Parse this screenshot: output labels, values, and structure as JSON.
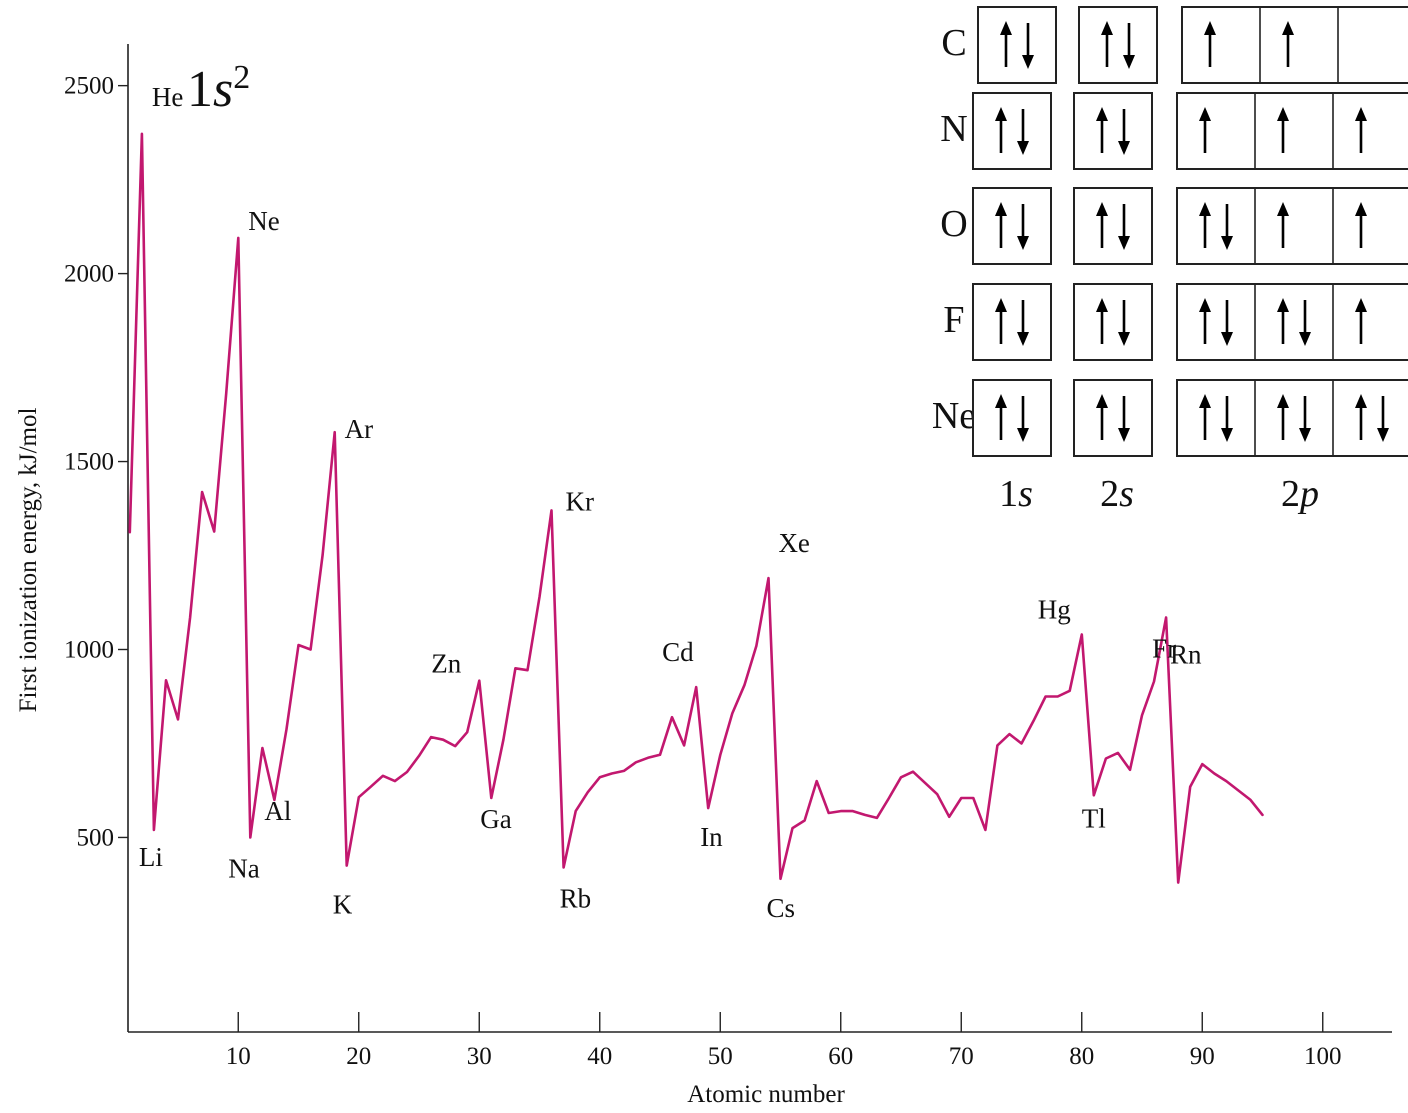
{
  "chart_data": {
    "type": "line",
    "xlabel": "Atomic number",
    "ylabel": "First ionization energy, kJ/mol",
    "xlim": [
      0,
      105
    ],
    "ylim": [
      0,
      2650
    ],
    "xticks": [
      10,
      20,
      30,
      40,
      50,
      60,
      70,
      80,
      90,
      100
    ],
    "yticks": [
      500,
      1000,
      1500,
      2000,
      2500
    ],
    "grid": false,
    "series_color": "#c2186f",
    "x": [
      1,
      2,
      3,
      4,
      5,
      6,
      7,
      8,
      9,
      10,
      11,
      12,
      13,
      14,
      15,
      16,
      17,
      18,
      19,
      20,
      21,
      22,
      23,
      24,
      25,
      26,
      27,
      28,
      29,
      30,
      31,
      32,
      33,
      34,
      35,
      36,
      37,
      38,
      39,
      40,
      41,
      42,
      43,
      44,
      45,
      46,
      47,
      48,
      49,
      50,
      51,
      52,
      53,
      54,
      55,
      56,
      57,
      58,
      59,
      60,
      61,
      62,
      63,
      64,
      65,
      66,
      67,
      68,
      69,
      70,
      71,
      72,
      73,
      74,
      75,
      76,
      77,
      78,
      79,
      80,
      81,
      82,
      83,
      84,
      85,
      86,
      87,
      88,
      89,
      90,
      91,
      92,
      93,
      94,
      95
    ],
    "values": [
      1312,
      2372,
      520,
      918,
      814,
      1085,
      1419,
      1314,
      1681,
      2095,
      500,
      738,
      600,
      788,
      1012,
      1000,
      1251,
      1578,
      425,
      607,
      635,
      664,
      650,
      674,
      717,
      767,
      760,
      743,
      780,
      917,
      605,
      760,
      950,
      945,
      1140,
      1370,
      420,
      570,
      620,
      660,
      670,
      677,
      700,
      712,
      720,
      820,
      745,
      900,
      578,
      720,
      830,
      905,
      1010,
      1190,
      390,
      525,
      545,
      650,
      565,
      570,
      570,
      560,
      552,
      605,
      660,
      675,
      645,
      615,
      555,
      605,
      605,
      520,
      745,
      775,
      750,
      810,
      875,
      875,
      890,
      1040,
      612,
      710,
      725,
      680,
      825,
      915,
      1085,
      380,
      635,
      695,
      670,
      650,
      625,
      600,
      560
    ],
    "labels": [
      {
        "text": "He",
        "x": 2
      },
      {
        "text": "Li",
        "x": 3
      },
      {
        "text": "Ne",
        "x": 10
      },
      {
        "text": "Na",
        "x": 11
      },
      {
        "text": "Al",
        "x": 13
      },
      {
        "text": "Ar",
        "x": 18
      },
      {
        "text": "K",
        "x": 19
      },
      {
        "text": "Zn",
        "x": 30
      },
      {
        "text": "Ga",
        "x": 31
      },
      {
        "text": "Kr",
        "x": 36
      },
      {
        "text": "Rb",
        "x": 37
      },
      {
        "text": "Cd",
        "x": 48
      },
      {
        "text": "In",
        "x": 49
      },
      {
        "text": "Xe",
        "x": 54
      },
      {
        "text": "Cs",
        "x": 55
      },
      {
        "text": "Hg",
        "x": 80
      },
      {
        "text": "Tl",
        "x": 81
      },
      {
        "text": "Rn",
        "x": 86
      },
      {
        "text": "Fr",
        "x": 87
      }
    ],
    "annotation": {
      "base": "1",
      "italic": "s",
      "sup": "2"
    }
  },
  "orbital_diagram": {
    "columns": [
      {
        "label_num": "1",
        "label_letter": "s",
        "cells": 1
      },
      {
        "label_num": "2",
        "label_letter": "s",
        "cells": 1
      },
      {
        "label_num": "2",
        "label_letter": "p",
        "cells": 3
      }
    ],
    "rows": [
      {
        "element": "C",
        "occupancy": [
          [
            2
          ],
          [
            2
          ],
          [
            1,
            1,
            0
          ]
        ]
      },
      {
        "element": "N",
        "occupancy": [
          [
            2
          ],
          [
            2
          ],
          [
            1,
            1,
            1
          ]
        ]
      },
      {
        "element": "O",
        "occupancy": [
          [
            2
          ],
          [
            2
          ],
          [
            2,
            1,
            1
          ]
        ]
      },
      {
        "element": "F",
        "occupancy": [
          [
            2
          ],
          [
            2
          ],
          [
            2,
            2,
            1
          ]
        ]
      },
      {
        "element": "Ne",
        "occupancy": [
          [
            2
          ],
          [
            2
          ],
          [
            2,
            2,
            2
          ]
        ]
      }
    ]
  }
}
